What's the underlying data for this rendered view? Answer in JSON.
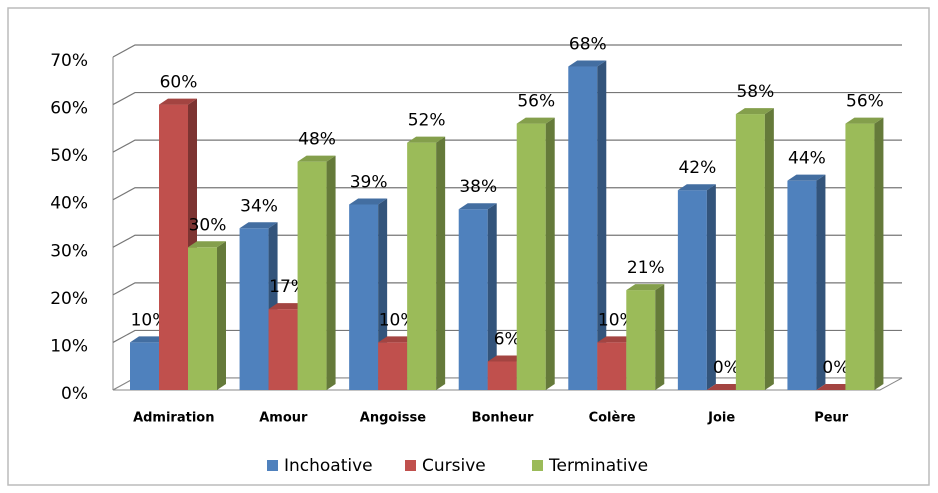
{
  "chart_data": {
    "type": "bar3d",
    "categories": [
      "Admiration",
      "Amour",
      "Angoisse",
      "Bonheur",
      "Colère",
      "Joie",
      "Peur"
    ],
    "series": [
      {
        "name": "Inchoative",
        "color": "#4f81bd",
        "values": [
          10,
          34,
          39,
          38,
          68,
          42,
          44
        ],
        "value_labels": [
          "10%",
          "34%",
          "39%",
          "38%",
          "68%",
          "42%",
          "44%"
        ]
      },
      {
        "name": "Cursive",
        "color": "#c0504d",
        "values": [
          60,
          17,
          10,
          6,
          10,
          0,
          0
        ],
        "value_labels": [
          "60%",
          "17%",
          "10%",
          "6%",
          "10%",
          "0%",
          "0%"
        ]
      },
      {
        "name": "Terminative",
        "color": "#9bbb59",
        "values": [
          30,
          48,
          52,
          56,
          21,
          58,
          56
        ],
        "value_labels": [
          "30%",
          "48%",
          "52%",
          "56%",
          "21%",
          "58%",
          "56%"
        ]
      }
    ],
    "ylim": [
      0,
      70
    ],
    "yticks": [
      {
        "value": 0,
        "label": "0%"
      },
      {
        "value": 10,
        "label": "10%"
      },
      {
        "value": 20,
        "label": "20%"
      },
      {
        "value": 30,
        "label": "30%"
      },
      {
        "value": 40,
        "label": "40%"
      },
      {
        "value": 50,
        "label": "50%"
      },
      {
        "value": 60,
        "label": "60%"
      },
      {
        "value": 70,
        "label": "70%"
      }
    ],
    "grid": true,
    "legend": "bottom"
  }
}
